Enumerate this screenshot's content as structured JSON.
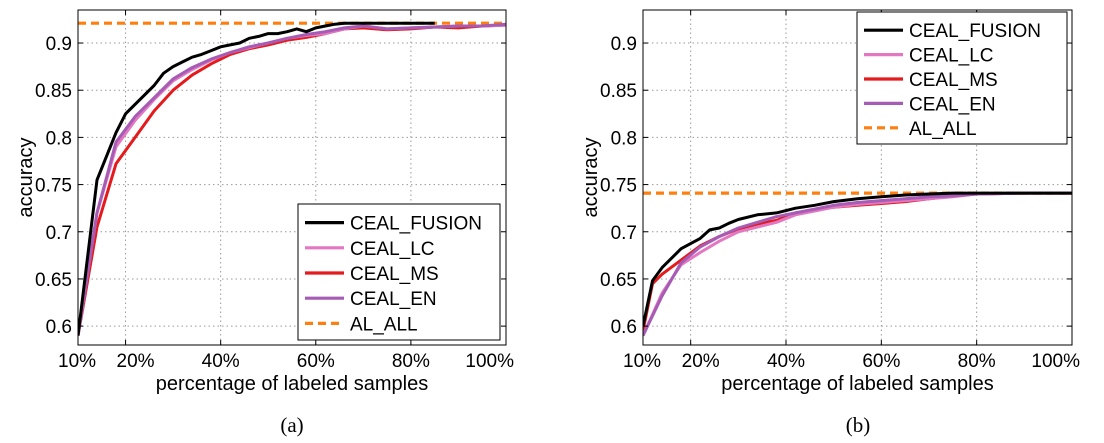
{
  "chart_data": [
    {
      "type": "line",
      "caption": "(a)",
      "xlabel": "percentage of labeled samples",
      "ylabel": "accuracy",
      "xlim": [
        10,
        100
      ],
      "ylim": [
        0.58,
        0.935
      ],
      "xticks": [
        10,
        20,
        40,
        60,
        80,
        100
      ],
      "xtick_labels": [
        "10%",
        "20%",
        "40%",
        "60%",
        "80%",
        "100%"
      ],
      "yticks": [
        0.6,
        0.65,
        0.7,
        0.75,
        0.8,
        0.85,
        0.9
      ],
      "ytick_labels": [
        "0.6",
        "0.65",
        "0.7",
        "0.75",
        "0.8",
        "0.85",
        "0.9"
      ],
      "grid": true,
      "legend_position": "bottom-right",
      "series": [
        {
          "name": "CEAL_FUSION",
          "color": "#000000",
          "style": "solid",
          "x": [
            10,
            14,
            18,
            20,
            24,
            26,
            28,
            30,
            32,
            34,
            36,
            38,
            40,
            42,
            44,
            46,
            48,
            50,
            52,
            54,
            56,
            58,
            60,
            62,
            64,
            66,
            68,
            70,
            75,
            80,
            85
          ],
          "y": [
            0.59,
            0.755,
            0.805,
            0.825,
            0.845,
            0.855,
            0.868,
            0.875,
            0.88,
            0.885,
            0.888,
            0.892,
            0.896,
            0.898,
            0.9,
            0.905,
            0.907,
            0.91,
            0.91,
            0.912,
            0.915,
            0.912,
            0.916,
            0.918,
            0.92,
            0.921,
            0.921,
            0.921,
            0.921,
            0.921,
            0.921
          ]
        },
        {
          "name": "CEAL_LC",
          "color": "#e377c2",
          "style": "solid",
          "x": [
            10,
            14,
            18,
            22,
            26,
            30,
            34,
            38,
            42,
            46,
            50,
            54,
            58,
            62,
            66,
            70,
            75,
            80,
            85,
            90,
            95,
            100
          ],
          "y": [
            0.59,
            0.72,
            0.79,
            0.818,
            0.84,
            0.86,
            0.872,
            0.882,
            0.89,
            0.895,
            0.9,
            0.905,
            0.908,
            0.91,
            0.915,
            0.918,
            0.915,
            0.916,
            0.917,
            0.918,
            0.918,
            0.919
          ]
        },
        {
          "name": "CEAL_MS",
          "color": "#e41a1c",
          "style": "solid",
          "x": [
            10,
            14,
            18,
            22,
            26,
            30,
            34,
            38,
            42,
            46,
            50,
            54,
            58,
            62,
            66,
            70,
            75,
            80,
            85,
            90,
            95,
            100
          ],
          "y": [
            0.59,
            0.705,
            0.772,
            0.8,
            0.828,
            0.85,
            0.866,
            0.878,
            0.888,
            0.894,
            0.898,
            0.903,
            0.906,
            0.91,
            0.915,
            0.916,
            0.914,
            0.915,
            0.917,
            0.916,
            0.918,
            0.919
          ]
        },
        {
          "name": "CEAL_EN",
          "color": "#a65bb5",
          "style": "solid",
          "x": [
            10,
            14,
            18,
            22,
            26,
            30,
            34,
            38,
            42,
            46,
            50,
            54,
            58,
            62,
            66,
            70,
            75,
            80,
            85,
            90,
            95,
            100
          ],
          "y": [
            0.59,
            0.72,
            0.795,
            0.822,
            0.842,
            0.862,
            0.874,
            0.883,
            0.89,
            0.896,
            0.9,
            0.905,
            0.909,
            0.912,
            0.916,
            0.918,
            0.915,
            0.916,
            0.917,
            0.918,
            0.918,
            0.92
          ]
        },
        {
          "name": "AL_ALL",
          "color": "#ff7f0e",
          "style": "dashed",
          "x": [
            10,
            100
          ],
          "y": [
            0.921,
            0.921
          ]
        }
      ]
    },
    {
      "type": "line",
      "caption": "(b)",
      "xlabel": "percentage of labeled samples",
      "ylabel": "accuracy",
      "xlim": [
        10,
        100
      ],
      "ylim": [
        0.58,
        0.935
      ],
      "xticks": [
        10,
        20,
        40,
        60,
        80,
        100
      ],
      "xtick_labels": [
        "10%",
        "20%",
        "40%",
        "60%",
        "80%",
        "100%"
      ],
      "yticks": [
        0.6,
        0.65,
        0.7,
        0.75,
        0.8,
        0.85,
        0.9
      ],
      "ytick_labels": [
        "0.6",
        "0.65",
        "0.7",
        "0.75",
        "0.8",
        "0.85",
        "0.9"
      ],
      "grid": true,
      "legend_position": "top-right",
      "series": [
        {
          "name": "CEAL_FUSION",
          "color": "#000000",
          "style": "solid",
          "x": [
            10,
            12,
            14,
            18,
            22,
            24,
            26,
            28,
            30,
            34,
            38,
            42,
            46,
            50,
            55,
            60,
            65,
            70,
            75,
            80,
            90,
            100
          ],
          "y": [
            0.6,
            0.648,
            0.662,
            0.682,
            0.693,
            0.702,
            0.704,
            0.709,
            0.713,
            0.718,
            0.72,
            0.725,
            0.728,
            0.732,
            0.735,
            0.737,
            0.739,
            0.74,
            0.741,
            0.741,
            0.741,
            0.741
          ]
        },
        {
          "name": "CEAL_LC",
          "color": "#e377c2",
          "style": "solid",
          "x": [
            10,
            14,
            18,
            22,
            26,
            30,
            34,
            38,
            42,
            46,
            50,
            55,
            60,
            65,
            70,
            75,
            80,
            90,
            100
          ],
          "y": [
            0.59,
            0.635,
            0.665,
            0.678,
            0.69,
            0.7,
            0.705,
            0.71,
            0.718,
            0.722,
            0.726,
            0.729,
            0.731,
            0.733,
            0.735,
            0.737,
            0.74,
            0.741,
            0.741
          ]
        },
        {
          "name": "CEAL_MS",
          "color": "#e41a1c",
          "style": "solid",
          "x": [
            10,
            12,
            14,
            18,
            22,
            26,
            30,
            34,
            38,
            42,
            46,
            50,
            55,
            60,
            65,
            70,
            75,
            80,
            90,
            100
          ],
          "y": [
            0.595,
            0.645,
            0.655,
            0.67,
            0.685,
            0.695,
            0.703,
            0.708,
            0.712,
            0.72,
            0.723,
            0.726,
            0.728,
            0.73,
            0.732,
            0.735,
            0.738,
            0.74,
            0.741,
            0.741
          ]
        },
        {
          "name": "CEAL_EN",
          "color": "#a65bb5",
          "style": "solid",
          "x": [
            10,
            14,
            18,
            22,
            26,
            30,
            34,
            38,
            42,
            46,
            50,
            55,
            60,
            65,
            70,
            75,
            80,
            90,
            100
          ],
          "y": [
            0.59,
            0.632,
            0.667,
            0.684,
            0.695,
            0.704,
            0.71,
            0.716,
            0.72,
            0.724,
            0.728,
            0.731,
            0.733,
            0.735,
            0.737,
            0.738,
            0.74,
            0.741,
            0.741
          ]
        },
        {
          "name": "AL_ALL",
          "color": "#ff7f0e",
          "style": "dashed",
          "x": [
            10,
            100
          ],
          "y": [
            0.741,
            0.741
          ]
        }
      ]
    }
  ]
}
